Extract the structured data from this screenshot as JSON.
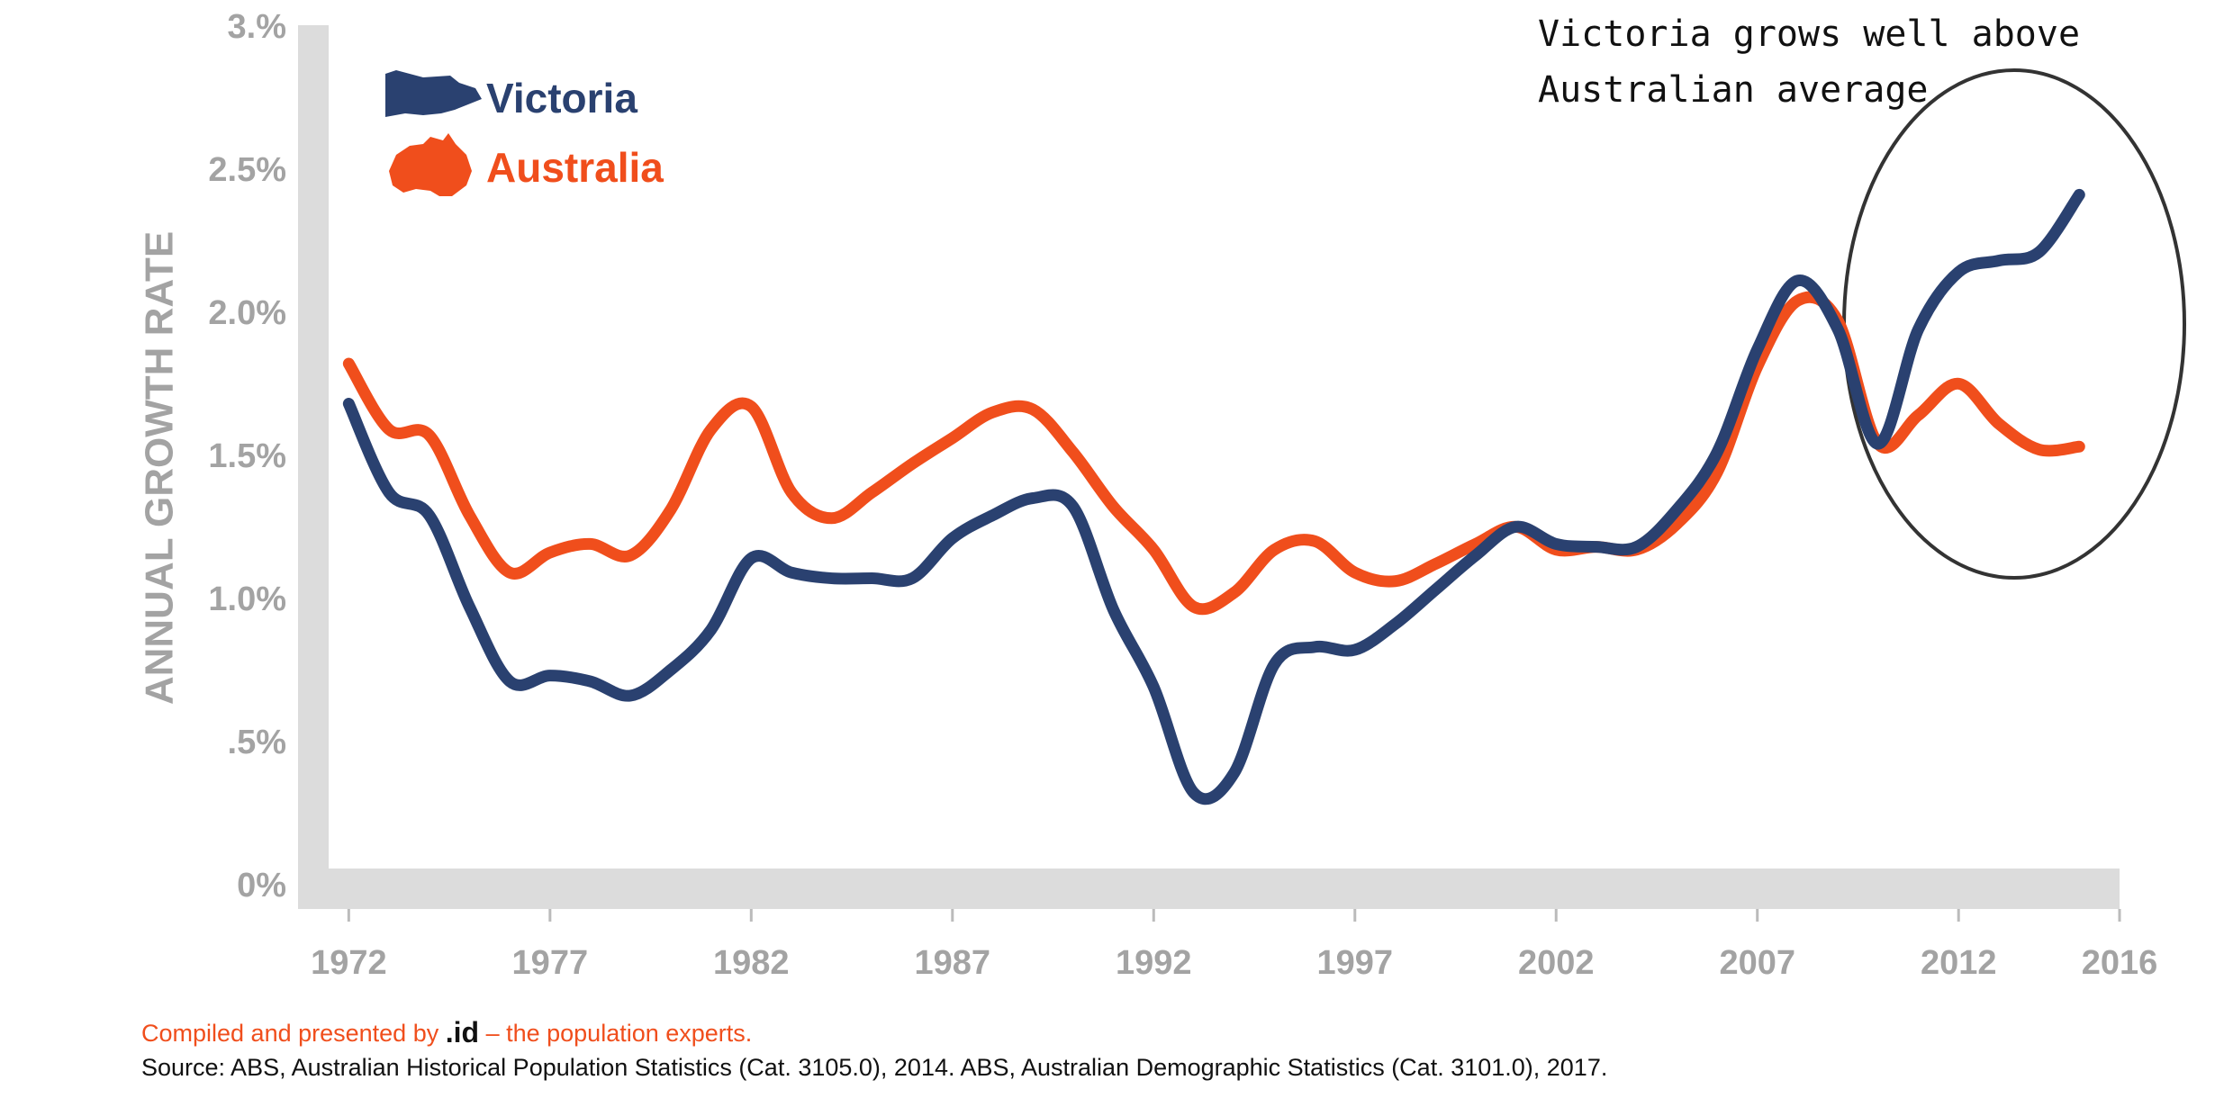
{
  "chart_data": {
    "type": "line",
    "y_label": "ANNUAL GROWTH RATE",
    "annotation": [
      "Victoria grows well above",
      "Australian average"
    ],
    "credit": [
      "Compiled and presented by",
      ".id",
      "– the population experts."
    ],
    "source": "Source: ABS, Australian Historical Population Statistics (Cat. 3105.0), 2014. ABS, Australian Demographic Statistics (Cat. 3101.0), 2017.",
    "x": [
      1972,
      1973,
      1974,
      1975,
      1976,
      1977,
      1978,
      1979,
      1980,
      1981,
      1982,
      1983,
      1984,
      1985,
      1986,
      1987,
      1988,
      1989,
      1990,
      1991,
      1992,
      1993,
      1994,
      1995,
      1996,
      1997,
      1998,
      1999,
      2000,
      2001,
      2002,
      2003,
      2004,
      2005,
      2006,
      2007,
      2008,
      2009,
      2010,
      2011,
      2012,
      2013,
      2014,
      2015
    ],
    "series": [
      {
        "name": "Victoria",
        "color": "#2a4170",
        "values": [
          1.69,
          1.38,
          1.3,
          0.98,
          0.72,
          0.74,
          0.72,
          0.67,
          0.76,
          0.9,
          1.15,
          1.1,
          1.08,
          1.08,
          1.08,
          1.22,
          1.3,
          1.36,
          1.33,
          0.97,
          0.7,
          0.33,
          0.4,
          0.78,
          0.84,
          0.83,
          0.92,
          1.04,
          1.16,
          1.26,
          1.2,
          1.19,
          1.19,
          1.32,
          1.52,
          1.88,
          2.12,
          1.95,
          1.55,
          1.95,
          2.15,
          2.19,
          2.22,
          2.42
        ]
      },
      {
        "name": "Australia",
        "color": "#f04e1c",
        "values": [
          1.83,
          1.6,
          1.58,
          1.3,
          1.1,
          1.17,
          1.2,
          1.16,
          1.32,
          1.6,
          1.68,
          1.38,
          1.29,
          1.38,
          1.48,
          1.57,
          1.66,
          1.67,
          1.52,
          1.33,
          1.18,
          0.98,
          1.03,
          1.18,
          1.21,
          1.1,
          1.07,
          1.13,
          1.2,
          1.26,
          1.18,
          1.19,
          1.18,
          1.27,
          1.45,
          1.82,
          2.05,
          1.98,
          1.55,
          1.65,
          1.76,
          1.62,
          1.53,
          1.54
        ]
      }
    ],
    "xlim": [
      1971.5,
      2016
    ],
    "xticks": [
      1972,
      1977,
      1982,
      1987,
      1992,
      1997,
      2002,
      2007,
      2012,
      2016
    ],
    "ylim": [
      0,
      3
    ],
    "yticks": [
      {
        "value": 0,
        "label": "0%"
      },
      {
        "value": 0.5,
        "label": ".5%"
      },
      {
        "value": 1,
        "label": "1.0%"
      },
      {
        "value": 1.5,
        "label": "1.5%"
      },
      {
        "value": 2,
        "label": "2.0%"
      },
      {
        "value": 2.5,
        "label": "2.5%"
      },
      {
        "value": 3,
        "label": "3.%"
      }
    ]
  }
}
